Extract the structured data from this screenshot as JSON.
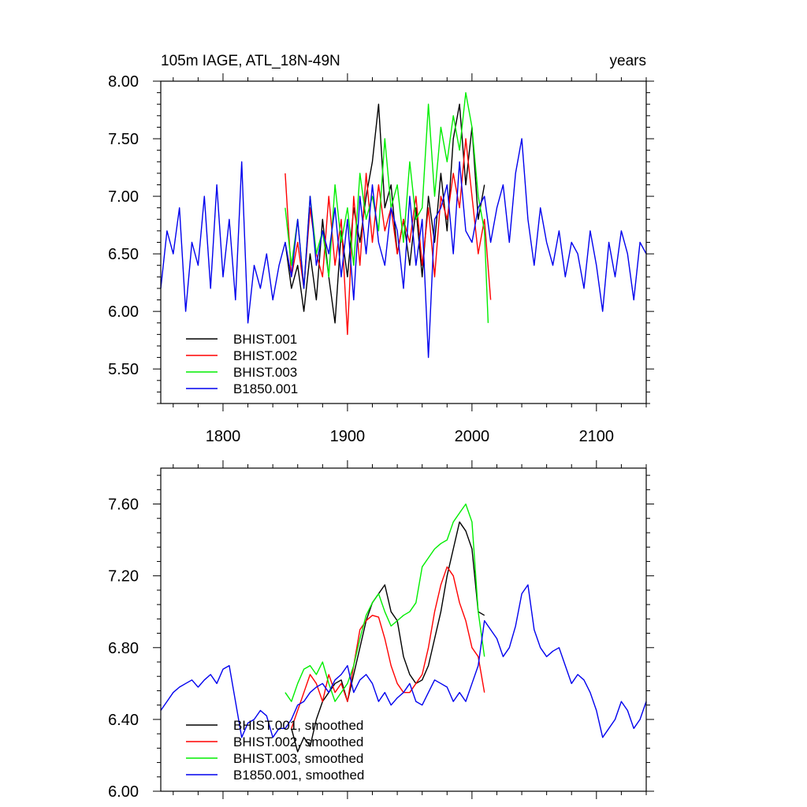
{
  "chart_data": [
    {
      "type": "line",
      "title": "105m IAGE, ATL_18N-49N",
      "title_right": "years",
      "xlim": [
        1750,
        2140
      ],
      "ylim": [
        5.2,
        8.0
      ],
      "xticks": [
        1800,
        1900,
        2000,
        2100
      ],
      "xtick_labels": [
        "1800",
        "1900",
        "2000",
        "2100"
      ],
      "yticks": [
        5.5,
        6.0,
        6.5,
        7.0,
        7.5,
        8.0
      ],
      "ytick_labels": [
        "5.50",
        "6.00",
        "6.50",
        "7.00",
        "7.50",
        "8.00"
      ],
      "legend_position": "bottom-left",
      "grid": false,
      "series": [
        {
          "name": "BHIST.001",
          "color": "#000000",
          "x": [
            1850,
            1855,
            1860,
            1865,
            1870,
            1875,
            1880,
            1885,
            1890,
            1895,
            1900,
            1905,
            1910,
            1915,
            1920,
            1925,
            1930,
            1935,
            1940,
            1945,
            1950,
            1955,
            1960,
            1965,
            1970,
            1975,
            1980,
            1985,
            1990,
            1995,
            2000,
            2005,
            2010
          ],
          "y": [
            6.6,
            6.2,
            6.4,
            6.0,
            6.5,
            6.1,
            6.8,
            6.3,
            5.9,
            6.7,
            6.3,
            6.9,
            6.6,
            7.0,
            7.3,
            7.8,
            6.9,
            7.1,
            6.5,
            6.8,
            6.4,
            6.9,
            6.3,
            7.0,
            6.6,
            7.2,
            6.7,
            7.5,
            7.8,
            7.1,
            7.6,
            6.8,
            7.1
          ]
        },
        {
          "name": "BHIST.002",
          "color": "#ff0000",
          "x": [
            1850,
            1855,
            1860,
            1865,
            1870,
            1875,
            1880,
            1885,
            1890,
            1895,
            1900,
            1905,
            1910,
            1915,
            1920,
            1925,
            1930,
            1935,
            1940,
            1945,
            1950,
            1955,
            1960,
            1965,
            1970,
            1975,
            1980,
            1985,
            1990,
            1995,
            2000,
            2005,
            2010,
            2015
          ],
          "y": [
            7.2,
            6.3,
            6.6,
            6.2,
            6.9,
            6.5,
            6.3,
            7.0,
            6.4,
            6.8,
            5.8,
            7.0,
            6.4,
            7.2,
            6.6,
            7.1,
            6.7,
            6.9,
            6.5,
            6.8,
            6.6,
            7.0,
            6.4,
            6.9,
            6.3,
            7.0,
            6.8,
            7.2,
            6.9,
            7.5,
            7.0,
            6.5,
            6.8,
            6.1
          ]
        },
        {
          "name": "BHIST.003",
          "color": "#00ee00",
          "x": [
            1850,
            1855,
            1860,
            1865,
            1870,
            1875,
            1880,
            1885,
            1890,
            1895,
            1900,
            1905,
            1910,
            1915,
            1920,
            1925,
            1930,
            1935,
            1940,
            1945,
            1950,
            1955,
            1960,
            1965,
            1970,
            1975,
            1980,
            1985,
            1990,
            1995,
            2000,
            2005,
            2010,
            2013
          ],
          "y": [
            6.9,
            6.4,
            6.8,
            6.2,
            7.0,
            6.5,
            6.7,
            6.3,
            7.1,
            6.6,
            6.9,
            6.4,
            7.2,
            6.8,
            7.0,
            6.7,
            7.5,
            6.9,
            7.1,
            6.6,
            7.3,
            6.8,
            6.9,
            7.8,
            7.0,
            7.6,
            7.3,
            7.7,
            7.4,
            7.9,
            7.6,
            7.0,
            6.7,
            5.9
          ]
        },
        {
          "name": "B1850.001",
          "color": "#0000ee",
          "x": [
            1750,
            1755,
            1760,
            1765,
            1770,
            1775,
            1780,
            1785,
            1790,
            1795,
            1800,
            1805,
            1810,
            1815,
            1820,
            1825,
            1830,
            1835,
            1840,
            1845,
            1850,
            1855,
            1860,
            1865,
            1870,
            1875,
            1880,
            1885,
            1890,
            1895,
            1900,
            1905,
            1910,
            1915,
            1920,
            1925,
            1930,
            1935,
            1940,
            1945,
            1950,
            1955,
            1960,
            1965,
            1970,
            1975,
            1980,
            1985,
            1990,
            1995,
            2000,
            2005,
            2010,
            2015,
            2020,
            2025,
            2030,
            2035,
            2040,
            2045,
            2050,
            2055,
            2060,
            2065,
            2070,
            2075,
            2080,
            2085,
            2090,
            2095,
            2100,
            2105,
            2110,
            2115,
            2120,
            2125,
            2130,
            2135,
            2140
          ],
          "y": [
            6.2,
            6.7,
            6.5,
            6.9,
            6.0,
            6.6,
            6.4,
            7.0,
            6.2,
            7.1,
            6.3,
            6.8,
            6.1,
            7.3,
            5.9,
            6.4,
            6.2,
            6.5,
            6.1,
            6.4,
            6.6,
            6.3,
            6.8,
            6.2,
            7.0,
            6.4,
            6.7,
            6.5,
            6.9,
            6.3,
            6.8,
            6.1,
            7.0,
            6.5,
            7.1,
            6.6,
            6.4,
            6.9,
            6.7,
            6.2,
            7.0,
            6.4,
            6.8,
            5.6,
            6.8,
            6.9,
            7.1,
            6.5,
            7.3,
            6.7,
            6.6,
            6.9,
            7.0,
            6.6,
            6.9,
            7.1,
            6.6,
            7.2,
            7.5,
            6.8,
            6.4,
            6.9,
            6.6,
            6.4,
            6.7,
            6.3,
            6.6,
            6.5,
            6.2,
            6.7,
            6.4,
            6.0,
            6.6,
            6.3,
            6.7,
            6.5,
            6.1,
            6.6,
            6.5
          ]
        }
      ]
    },
    {
      "type": "line",
      "xlim": [
        1750,
        2140
      ],
      "ylim": [
        6.0,
        7.8
      ],
      "xticks": [
        1800,
        1900,
        2000,
        2100
      ],
      "yticks": [
        6.0,
        6.4,
        6.8,
        7.2,
        7.6
      ],
      "ytick_labels": [
        "6.00",
        "6.40",
        "6.80",
        "7.20",
        "7.60"
      ],
      "legend_position": "bottom-left",
      "grid": false,
      "series": [
        {
          "name": "BHIST.001, smoothed",
          "color": "#000000",
          "x": [
            1855,
            1860,
            1865,
            1870,
            1875,
            1880,
            1885,
            1890,
            1895,
            1900,
            1905,
            1910,
            1915,
            1920,
            1925,
            1930,
            1935,
            1940,
            1945,
            1950,
            1955,
            1960,
            1965,
            1970,
            1975,
            1980,
            1985,
            1990,
            1995,
            2000,
            2005,
            2010
          ],
          "y": [
            6.35,
            6.22,
            6.3,
            6.25,
            6.4,
            6.5,
            6.55,
            6.6,
            6.62,
            6.5,
            6.65,
            6.8,
            6.95,
            7.05,
            7.1,
            7.15,
            7.0,
            6.95,
            6.75,
            6.65,
            6.6,
            6.62,
            6.7,
            6.85,
            7.0,
            7.2,
            7.35,
            7.5,
            7.45,
            7.35,
            7.0,
            6.98
          ]
        },
        {
          "name": "BHIST.002, smoothed",
          "color": "#ff0000",
          "x": [
            1855,
            1860,
            1865,
            1870,
            1875,
            1880,
            1885,
            1890,
            1895,
            1900,
            1905,
            1910,
            1915,
            1920,
            1925,
            1930,
            1935,
            1940,
            1945,
            1950,
            1955,
            1960,
            1965,
            1970,
            1975,
            1980,
            1985,
            1990,
            1995,
            2000,
            2005,
            2010
          ],
          "y": [
            6.35,
            6.45,
            6.55,
            6.65,
            6.6,
            6.5,
            6.65,
            6.55,
            6.6,
            6.5,
            6.7,
            6.9,
            6.95,
            6.98,
            6.97,
            6.85,
            6.7,
            6.6,
            6.55,
            6.55,
            6.6,
            6.65,
            6.8,
            7.0,
            7.15,
            7.25,
            7.2,
            7.05,
            6.95,
            6.8,
            6.75,
            6.55
          ]
        },
        {
          "name": "BHIST.003, smoothed",
          "color": "#00ee00",
          "x": [
            1850,
            1855,
            1860,
            1865,
            1870,
            1875,
            1880,
            1885,
            1890,
            1895,
            1900,
            1905,
            1910,
            1915,
            1920,
            1925,
            1930,
            1935,
            1940,
            1945,
            1950,
            1955,
            1960,
            1965,
            1970,
            1975,
            1980,
            1985,
            1990,
            1995,
            2000,
            2005,
            2010
          ],
          "y": [
            6.55,
            6.5,
            6.6,
            6.68,
            6.7,
            6.65,
            6.72,
            6.6,
            6.5,
            6.55,
            6.6,
            6.7,
            6.85,
            6.98,
            7.05,
            7.1,
            7.0,
            6.92,
            6.95,
            6.98,
            7.0,
            7.05,
            7.25,
            7.3,
            7.35,
            7.38,
            7.4,
            7.5,
            7.55,
            7.6,
            7.5,
            7.0,
            6.75
          ]
        },
        {
          "name": "B1850.001, smoothed",
          "color": "#0000ee",
          "x": [
            1750,
            1755,
            1760,
            1765,
            1770,
            1775,
            1780,
            1785,
            1790,
            1795,
            1800,
            1805,
            1810,
            1815,
            1820,
            1825,
            1830,
            1835,
            1840,
            1845,
            1850,
            1855,
            1860,
            1865,
            1870,
            1875,
            1880,
            1885,
            1890,
            1895,
            1900,
            1905,
            1910,
            1915,
            1920,
            1925,
            1930,
            1935,
            1940,
            1945,
            1950,
            1955,
            1960,
            1965,
            1970,
            1975,
            1980,
            1985,
            1990,
            1995,
            2000,
            2005,
            2010,
            2015,
            2020,
            2025,
            2030,
            2035,
            2040,
            2045,
            2050,
            2055,
            2060,
            2065,
            2070,
            2075,
            2080,
            2085,
            2090,
            2095,
            2100,
            2105,
            2110,
            2115,
            2120,
            2125,
            2130,
            2135,
            2140
          ],
          "y": [
            6.45,
            6.5,
            6.55,
            6.58,
            6.6,
            6.62,
            6.58,
            6.62,
            6.65,
            6.6,
            6.68,
            6.7,
            6.5,
            6.3,
            6.38,
            6.4,
            6.45,
            6.42,
            6.3,
            6.35,
            6.35,
            6.4,
            6.48,
            6.5,
            6.55,
            6.58,
            6.6,
            6.55,
            6.62,
            6.65,
            6.7,
            6.55,
            6.62,
            6.65,
            6.6,
            6.5,
            6.55,
            6.48,
            6.52,
            6.55,
            6.6,
            6.5,
            6.48,
            6.55,
            6.62,
            6.6,
            6.58,
            6.5,
            6.55,
            6.5,
            6.6,
            6.7,
            6.95,
            6.9,
            6.85,
            6.75,
            6.8,
            6.92,
            7.1,
            7.15,
            6.9,
            6.8,
            6.75,
            6.78,
            6.8,
            6.7,
            6.6,
            6.65,
            6.62,
            6.55,
            6.45,
            6.3,
            6.35,
            6.4,
            6.5,
            6.45,
            6.35,
            6.4,
            6.5
          ]
        }
      ]
    }
  ]
}
